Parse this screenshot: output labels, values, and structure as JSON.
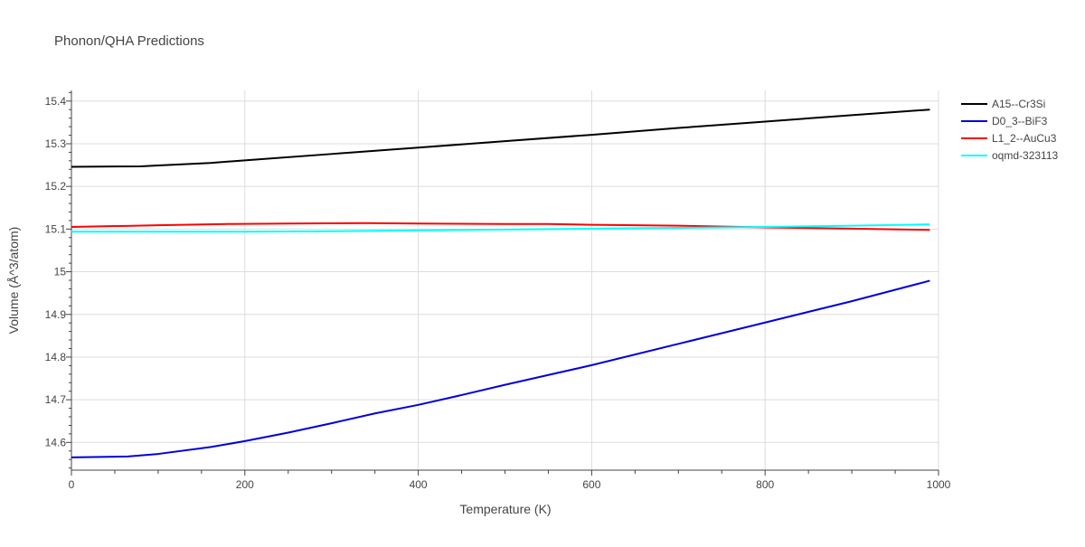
{
  "chart_data": {
    "type": "line",
    "title": "Phonon/QHA Predictions",
    "xlabel": "Temperature (K)",
    "ylabel": "Volume (Å^3/atom)",
    "xlim": [
      0,
      1000
    ],
    "ylim": [
      14.535,
      15.425
    ],
    "x_ticks": [
      "0",
      "200",
      "400",
      "600",
      "800",
      "1000"
    ],
    "y_ticks": [
      "14.6",
      "14.7",
      "14.8",
      "14.9",
      "15",
      "15.1",
      "15.2",
      "15.3",
      "15.4"
    ],
    "grid": true,
    "legend_position": "top-right",
    "series": [
      {
        "name": "A15--Cr3Si",
        "color": "#000000",
        "x": [
          0,
          80,
          100,
          160,
          200,
          300,
          400,
          500,
          600,
          700,
          800,
          900,
          990
        ],
        "y": [
          15.246,
          15.247,
          15.249,
          15.255,
          15.261,
          15.276,
          15.291,
          15.306,
          15.321,
          15.337,
          15.352,
          15.367,
          15.38
        ]
      },
      {
        "name": "D0_3--BiF3",
        "color": "#0000dd",
        "x": [
          0,
          65,
          100,
          160,
          200,
          250,
          300,
          350,
          400,
          450,
          500,
          550,
          600,
          700,
          800,
          900,
          990
        ],
        "y": [
          14.565,
          14.567,
          14.573,
          14.589,
          14.603,
          14.623,
          14.645,
          14.668,
          14.688,
          14.711,
          14.735,
          14.758,
          14.781,
          14.831,
          14.881,
          14.931,
          14.979
        ]
      },
      {
        "name": "L1_2--AuCu3",
        "color": "#ff0000",
        "x": [
          0,
          100,
          180,
          250,
          340,
          400,
          500,
          550,
          600,
          700,
          800,
          900,
          990
        ],
        "y": [
          15.105,
          15.109,
          15.112,
          15.113,
          15.114,
          15.113,
          15.112,
          15.112,
          15.11,
          15.108,
          15.104,
          15.101,
          15.098
        ]
      },
      {
        "name": "oqmd-323113",
        "color": "#00ffff",
        "x": [
          0,
          100,
          200,
          300,
          400,
          500,
          600,
          700,
          800,
          900,
          990
        ],
        "y": [
          15.094,
          15.094,
          15.094,
          15.095,
          15.097,
          15.099,
          15.101,
          15.103,
          15.105,
          15.108,
          15.111
        ]
      }
    ]
  }
}
